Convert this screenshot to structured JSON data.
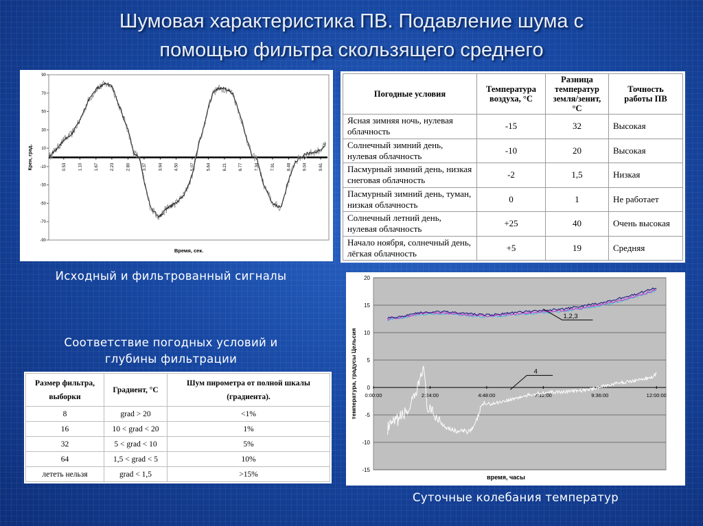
{
  "title_line1": "Шумовая характеристика ПВ. Подавление шума с",
  "title_line2": "помощью фильтра скользящего среднего",
  "captions": {
    "signals": "Исходный и фильтрованный сигналы",
    "filter_match_line1": "Соответствие погодных условий и",
    "filter_match_line2": "глубины фильтрации",
    "daily": "Суточные колебания температур"
  },
  "colors": {
    "background": "#1748a3",
    "plot_bg_gray": "#c0c0c0",
    "series_dark": "#1a1a80",
    "series_magenta": "#d23cd2",
    "series_cyan": "#40b8d8"
  },
  "chart_data": [
    {
      "type": "line",
      "title": "",
      "xlabel": "Время, сек.",
      "ylabel": "Крен, град.",
      "ylim": [
        -90,
        90
      ],
      "yticks": [
        "90",
        "70",
        "50",
        "30",
        "10",
        "-10",
        "-30",
        "-50",
        "-70",
        "-90"
      ],
      "xticks": [
        "0.53",
        "1.10",
        "1.67",
        "2.23",
        "2.80",
        "3.37",
        "3.94",
        "4.50",
        "5.07",
        "5.64",
        "6.21",
        "6.77",
        "7.34",
        "7.91",
        "8.48",
        "9.04",
        "9.61"
      ],
      "zero_line": 0,
      "series": [
        {
          "x": [
            0.0,
            0.3,
            0.5,
            0.8,
            1.1,
            1.4,
            1.7,
            2.0,
            2.23,
            2.5,
            2.8,
            3.0,
            3.2,
            3.4,
            3.6,
            3.9,
            4.2,
            4.5,
            4.8,
            5.07,
            5.3,
            5.5,
            5.64,
            5.8,
            6.0,
            6.21,
            6.5,
            6.77,
            7.0,
            7.2,
            7.34,
            7.6,
            7.91,
            8.2,
            8.48,
            8.7,
            9.04,
            9.3,
            9.61,
            9.8
          ],
          "y": [
            0,
            10,
            18,
            25,
            40,
            62,
            75,
            80,
            78,
            55,
            30,
            5,
            0,
            -30,
            -55,
            -65,
            -55,
            -50,
            -40,
            -20,
            15,
            35,
            55,
            70,
            75,
            75,
            70,
            45,
            20,
            0,
            0,
            -30,
            -50,
            -55,
            -25,
            -5,
            3,
            5,
            8,
            15
          ]
        }
      ]
    },
    {
      "type": "line",
      "title": "",
      "xlabel": "время, часы",
      "ylabel": "температура, градусы Цельсия",
      "ylim": [
        -15,
        20
      ],
      "yticks": [
        "20",
        "15",
        "10",
        "5",
        "0",
        "-5",
        "-10",
        "-15"
      ],
      "xticks": [
        "0:00:00",
        "2:24:00",
        "4:48:00",
        "7:12:00",
        "9:36:00",
        "12:00:00"
      ],
      "annotations": [
        "1,2,3",
        "4"
      ],
      "series": [
        {
          "name": "1,2,3",
          "x": [
            0.6,
            1.2,
            2.0,
            3.0,
            4.0,
            5.0,
            6.0,
            7.0,
            8.0,
            9.0,
            10.0,
            11.0,
            12.0
          ],
          "y": [
            12.5,
            12.8,
            13.5,
            13.6,
            13.2,
            13.0,
            13.4,
            13.7,
            14.0,
            14.6,
            15.4,
            16.5,
            17.8
          ]
        },
        {
          "name": "4",
          "x": [
            0.6,
            1.0,
            1.5,
            1.8,
            2.1,
            2.3,
            2.6,
            3.0,
            3.5,
            4.0,
            4.3,
            4.6,
            5.0,
            6.0,
            7.0,
            8.0,
            9.0,
            10.0,
            11.0,
            11.8,
            12.0
          ],
          "y": [
            -7.5,
            -6.0,
            -4.0,
            -1.5,
            4.0,
            -4.0,
            -5.0,
            -7.0,
            -8.0,
            -8.0,
            -7.0,
            -3.0,
            -3.0,
            -2.0,
            -1.0,
            -0.8,
            -0.5,
            0.5,
            1.2,
            1.8,
            2.5
          ]
        }
      ]
    }
  ],
  "weather_table": {
    "headers": [
      "Погодные условия",
      "Температура воздуха, °С",
      "Разница температур земля/зенит, °С",
      "Точность работы ПВ"
    ],
    "rows": [
      [
        "Ясная зимняя ночь, нулевая облачность",
        "-15",
        "32",
        "Высокая"
      ],
      [
        "Солнечный зимний день, нулевая облачность",
        "-10",
        "20",
        "Высокая"
      ],
      [
        "Пасмурный зимний день, низкая снеговая облачность",
        "-2",
        "1,5",
        "Низкая"
      ],
      [
        "Пасмурный зимний день, туман, низкая облачность",
        "0",
        "1",
        "Не работает"
      ],
      [
        "Солнечный летний день, нулевая облачность",
        "+25",
        "40",
        "Очень высокая"
      ],
      [
        "Начало ноября, солнечный день, лёгкая облачность",
        "+5",
        "19",
        "Средняя"
      ]
    ]
  },
  "filter_table": {
    "headers": [
      "Размер фильтра, выборки",
      "Градиент, °С",
      "Шум пирометра от полной шкалы (градиента)."
    ],
    "rows": [
      [
        "8",
        "grad > 20",
        "<1%"
      ],
      [
        "16",
        "10 < grad < 20",
        "1%"
      ],
      [
        "32",
        "5 < grad < 10",
        "5%"
      ],
      [
        "64",
        "1,5 < grad < 5",
        "10%"
      ],
      [
        "лететь нельзя",
        "grad < 1,5",
        ">15%"
      ]
    ]
  }
}
